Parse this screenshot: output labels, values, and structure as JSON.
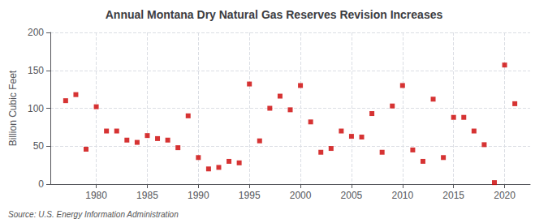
{
  "chart_data": {
    "type": "scatter",
    "title": "Annual Montana Dry Natural Gas Reserves Revision Increases",
    "ylabel": "Billion Cubic Feet",
    "source": "Source: U.S. Energy Information Administration",
    "x": [
      1977,
      1978,
      1979,
      1980,
      1981,
      1982,
      1983,
      1984,
      1985,
      1986,
      1987,
      1988,
      1989,
      1990,
      1991,
      1992,
      1993,
      1994,
      1995,
      1996,
      1997,
      1998,
      1999,
      2000,
      2001,
      2002,
      2003,
      2004,
      2005,
      2006,
      2007,
      2008,
      2009,
      2010,
      2011,
      2012,
      2013,
      2014,
      2015,
      2016,
      2017,
      2018,
      2019,
      2020,
      2021
    ],
    "values": [
      110,
      118,
      46,
      102,
      70,
      70,
      58,
      55,
      64,
      60,
      58,
      48,
      90,
      35,
      20,
      22,
      30,
      28,
      132,
      57,
      100,
      116,
      98,
      130,
      82,
      42,
      47,
      70,
      63,
      62,
      93,
      42,
      103,
      130,
      45,
      30,
      112,
      35,
      88,
      88,
      70,
      52,
      2,
      157,
      106
    ],
    "color": "#cc0000",
    "marker": "square",
    "xlim": [
      1975.5,
      2022.5
    ],
    "ylim": [
      0,
      200
    ],
    "xticks": [
      1980,
      1985,
      1990,
      1995,
      2000,
      2005,
      2010,
      2015,
      2020
    ],
    "yticks": [
      0,
      50,
      100,
      150,
      200
    ],
    "grid": true
  }
}
